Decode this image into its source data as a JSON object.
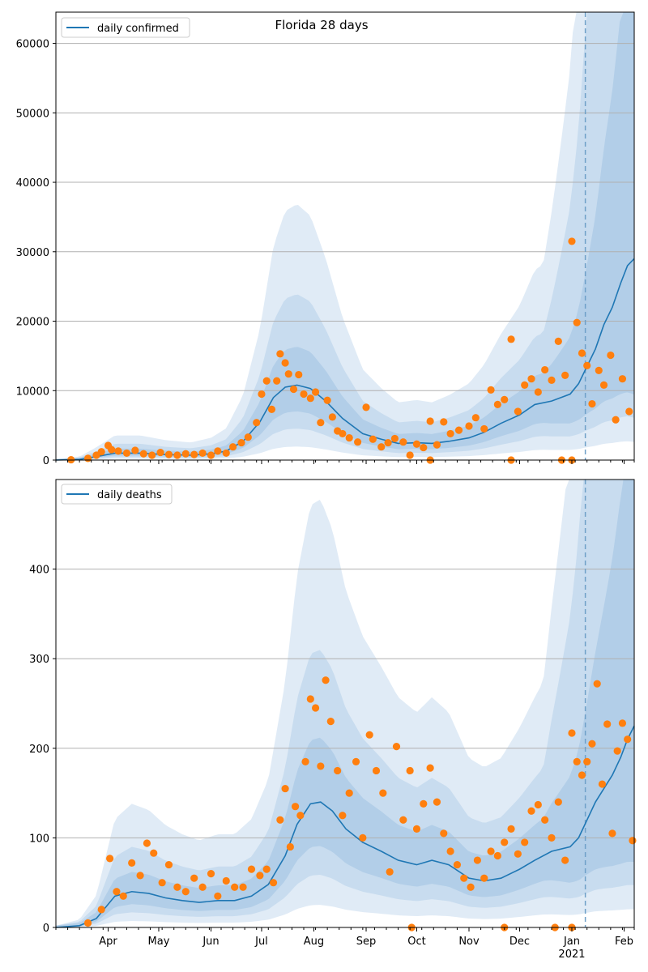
{
  "chart_data": [
    {
      "type": "line",
      "title": "Florida 28 days",
      "xlabel": "",
      "ylabel": "",
      "ylim": [
        0,
        64500
      ],
      "xlim": [
        "2020-03-01",
        "2021-02-07"
      ],
      "yticks": [
        0,
        10000,
        20000,
        30000,
        40000,
        50000,
        60000
      ],
      "grid": "horizontal",
      "legend": {
        "position": "top-left",
        "entries": [
          "daily confirmed"
        ]
      },
      "marker_line_date": "2021-01-09",
      "series": [
        {
          "name": "daily confirmed",
          "style": "line",
          "x": [
            "2020-03-01",
            "2020-03-15",
            "2020-03-25",
            "2020-04-05",
            "2020-04-20",
            "2020-05-05",
            "2020-05-20",
            "2020-06-01",
            "2020-06-10",
            "2020-06-20",
            "2020-06-30",
            "2020-07-08",
            "2020-07-15",
            "2020-07-22",
            "2020-07-30",
            "2020-08-08",
            "2020-08-18",
            "2020-08-30",
            "2020-09-10",
            "2020-09-20",
            "2020-10-01",
            "2020-10-10",
            "2020-10-20",
            "2020-11-01",
            "2020-11-10",
            "2020-11-20",
            "2020-12-01",
            "2020-12-10",
            "2020-12-20",
            "2020-12-31",
            "2021-01-05",
            "2021-01-10",
            "2021-01-15",
            "2021-01-20",
            "2021-01-25",
            "2021-01-30",
            "2021-02-03",
            "2021-02-07"
          ],
          "values": [
            0,
            100,
            500,
            1000,
            1000,
            800,
            700,
            900,
            1300,
            2700,
            5500,
            9000,
            10500,
            10800,
            10300,
            8500,
            6000,
            3800,
            3000,
            2400,
            2500,
            2400,
            2700,
            3200,
            4000,
            5300,
            6500,
            8000,
            8500,
            9500,
            11000,
            13500,
            16000,
            19500,
            22000,
            25500,
            28000,
            29000
          ]
        },
        {
          "name": "observed",
          "style": "scatter",
          "points": [
            [
              "2020-03-10",
              50
            ],
            [
              "2020-03-20",
              250
            ],
            [
              "2020-03-25",
              700
            ],
            [
              "2020-03-28",
              1200
            ],
            [
              "2020-04-01",
              2100
            ],
            [
              "2020-04-03",
              1500
            ],
            [
              "2020-04-07",
              1300
            ],
            [
              "2020-04-12",
              1000
            ],
            [
              "2020-04-17",
              1400
            ],
            [
              "2020-04-22",
              900
            ],
            [
              "2020-04-27",
              700
            ],
            [
              "2020-05-02",
              1100
            ],
            [
              "2020-05-07",
              800
            ],
            [
              "2020-05-12",
              700
            ],
            [
              "2020-05-17",
              900
            ],
            [
              "2020-05-22",
              800
            ],
            [
              "2020-05-27",
              1000
            ],
            [
              "2020-06-01",
              700
            ],
            [
              "2020-06-05",
              1300
            ],
            [
              "2020-06-10",
              1000
            ],
            [
              "2020-06-14",
              1900
            ],
            [
              "2020-06-19",
              2500
            ],
            [
              "2020-06-23",
              3300
            ],
            [
              "2020-06-28",
              5400
            ],
            [
              "2020-07-01",
              9500
            ],
            [
              "2020-07-04",
              11400
            ],
            [
              "2020-07-07",
              7300
            ],
            [
              "2020-07-10",
              11400
            ],
            [
              "2020-07-12",
              15300
            ],
            [
              "2020-07-15",
              14000
            ],
            [
              "2020-07-17",
              12400
            ],
            [
              "2020-07-20",
              10200
            ],
            [
              "2020-07-23",
              12300
            ],
            [
              "2020-07-26",
              9500
            ],
            [
              "2020-07-30",
              8900
            ],
            [
              "2020-08-02",
              9800
            ],
            [
              "2020-08-05",
              5400
            ],
            [
              "2020-08-09",
              8600
            ],
            [
              "2020-08-12",
              6200
            ],
            [
              "2020-08-15",
              4200
            ],
            [
              "2020-08-18",
              3800
            ],
            [
              "2020-08-22",
              3200
            ],
            [
              "2020-08-27",
              2600
            ],
            [
              "2020-09-01",
              7600
            ],
            [
              "2020-09-05",
              3000
            ],
            [
              "2020-09-10",
              1900
            ],
            [
              "2020-09-14",
              2500
            ],
            [
              "2020-09-18",
              3100
            ],
            [
              "2020-09-23",
              2600
            ],
            [
              "2020-09-27",
              700
            ],
            [
              "2020-10-01",
              2300
            ],
            [
              "2020-10-05",
              1800
            ],
            [
              "2020-10-09",
              5600
            ],
            [
              "2020-10-13",
              2200
            ],
            [
              "2020-10-17",
              5500
            ],
            [
              "2020-10-21",
              3800
            ],
            [
              "2020-10-26",
              4300
            ],
            [
              "2020-11-01",
              4900
            ],
            [
              "2020-11-05",
              6100
            ],
            [
              "2020-11-10",
              4500
            ],
            [
              "2020-11-14",
              10100
            ],
            [
              "2020-11-18",
              8000
            ],
            [
              "2020-11-22",
              8700
            ],
            [
              "2020-11-26",
              17400
            ],
            [
              "2020-11-30",
              7000
            ],
            [
              "2020-12-04",
              10800
            ],
            [
              "2020-12-08",
              11700
            ],
            [
              "2020-12-12",
              9800
            ],
            [
              "2020-12-16",
              13000
            ],
            [
              "2020-12-20",
              11500
            ],
            [
              "2020-12-24",
              17100
            ],
            [
              "2020-12-28",
              12200
            ],
            [
              "2021-01-01",
              31500
            ],
            [
              "2021-01-04",
              19800
            ],
            [
              "2021-01-07",
              15400
            ],
            [
              "2021-01-10",
              13600
            ],
            [
              "2021-01-13",
              8100
            ],
            [
              "2021-01-17",
              12900
            ],
            [
              "2021-01-20",
              10800
            ],
            [
              "2021-01-24",
              15100
            ],
            [
              "2021-01-27",
              5800
            ],
            [
              "2021-01-31",
              11700
            ],
            [
              "2021-02-04",
              7000
            ],
            [
              "2020-11-26",
              0
            ],
            [
              "2020-12-26",
              0
            ],
            [
              "2021-01-01",
              0
            ],
            [
              "2020-10-09",
              0
            ]
          ]
        }
      ],
      "bands": "nested uncertainty bands (light blue shades)"
    },
    {
      "type": "line",
      "title": "",
      "xlabel": "",
      "ylabel": "",
      "ylim": [
        0,
        500
      ],
      "xlim": [
        "2020-03-01",
        "2021-02-07"
      ],
      "yticks": [
        0,
        100,
        200,
        300,
        400
      ],
      "grid": "horizontal",
      "legend": {
        "position": "top-left",
        "entries": [
          "daily deaths"
        ]
      },
      "marker_line_date": "2021-01-09",
      "series": [
        {
          "name": "daily deaths",
          "style": "line",
          "x": [
            "2020-03-01",
            "2020-03-15",
            "2020-03-25",
            "2020-04-05",
            "2020-04-15",
            "2020-04-25",
            "2020-05-05",
            "2020-05-15",
            "2020-05-25",
            "2020-06-05",
            "2020-06-15",
            "2020-06-25",
            "2020-07-05",
            "2020-07-15",
            "2020-07-22",
            "2020-07-30",
            "2020-08-05",
            "2020-08-12",
            "2020-08-20",
            "2020-08-30",
            "2020-09-10",
            "2020-09-20",
            "2020-10-01",
            "2020-10-10",
            "2020-10-20",
            "2020-11-01",
            "2020-11-10",
            "2020-11-20",
            "2020-12-01",
            "2020-12-10",
            "2020-12-20",
            "2020-12-31",
            "2021-01-05",
            "2021-01-10",
            "2021-01-15",
            "2021-01-20",
            "2021-01-25",
            "2021-01-30",
            "2021-02-03",
            "2021-02-07"
          ],
          "values": [
            0,
            2,
            10,
            35,
            40,
            38,
            33,
            30,
            28,
            30,
            30,
            35,
            48,
            80,
            115,
            138,
            140,
            130,
            110,
            95,
            85,
            75,
            70,
            75,
            70,
            55,
            52,
            55,
            65,
            75,
            85,
            90,
            100,
            120,
            140,
            155,
            170,
            190,
            210,
            225
          ]
        },
        {
          "name": "observed",
          "style": "scatter",
          "points": [
            [
              "2020-03-20",
              5
            ],
            [
              "2020-03-28",
              20
            ],
            [
              "2020-04-02",
              77
            ],
            [
              "2020-04-06",
              40
            ],
            [
              "2020-04-10",
              35
            ],
            [
              "2020-04-15",
              72
            ],
            [
              "2020-04-20",
              58
            ],
            [
              "2020-04-24",
              94
            ],
            [
              "2020-04-28",
              83
            ],
            [
              "2020-05-03",
              50
            ],
            [
              "2020-05-07",
              70
            ],
            [
              "2020-05-12",
              45
            ],
            [
              "2020-05-17",
              40
            ],
            [
              "2020-05-22",
              55
            ],
            [
              "2020-05-27",
              45
            ],
            [
              "2020-06-01",
              60
            ],
            [
              "2020-06-05",
              35
            ],
            [
              "2020-06-10",
              52
            ],
            [
              "2020-06-15",
              45
            ],
            [
              "2020-06-20",
              45
            ],
            [
              "2020-06-25",
              65
            ],
            [
              "2020-06-30",
              58
            ],
            [
              "2020-07-04",
              65
            ],
            [
              "2020-07-08",
              50
            ],
            [
              "2020-07-12",
              120
            ],
            [
              "2020-07-15",
              155
            ],
            [
              "2020-07-18",
              90
            ],
            [
              "2020-07-21",
              135
            ],
            [
              "2020-07-24",
              125
            ],
            [
              "2020-07-27",
              185
            ],
            [
              "2020-07-30",
              255
            ],
            [
              "2020-08-02",
              245
            ],
            [
              "2020-08-05",
              180
            ],
            [
              "2020-08-08",
              276
            ],
            [
              "2020-08-11",
              230
            ],
            [
              "2020-08-15",
              175
            ],
            [
              "2020-08-18",
              125
            ],
            [
              "2020-08-22",
              150
            ],
            [
              "2020-08-26",
              185
            ],
            [
              "2020-08-30",
              100
            ],
            [
              "2020-09-03",
              215
            ],
            [
              "2020-09-07",
              175
            ],
            [
              "2020-09-11",
              150
            ],
            [
              "2020-09-15",
              62
            ],
            [
              "2020-09-19",
              202
            ],
            [
              "2020-09-23",
              120
            ],
            [
              "2020-09-27",
              175
            ],
            [
              "2020-10-01",
              110
            ],
            [
              "2020-10-05",
              138
            ],
            [
              "2020-10-09",
              178
            ],
            [
              "2020-10-13",
              140
            ],
            [
              "2020-10-17",
              105
            ],
            [
              "2020-10-21",
              85
            ],
            [
              "2020-10-25",
              70
            ],
            [
              "2020-10-29",
              55
            ],
            [
              "2020-11-02",
              45
            ],
            [
              "2020-11-06",
              75
            ],
            [
              "2020-11-10",
              55
            ],
            [
              "2020-11-14",
              85
            ],
            [
              "2020-11-18",
              80
            ],
            [
              "2020-11-22",
              95
            ],
            [
              "2020-11-26",
              110
            ],
            [
              "2020-11-30",
              82
            ],
            [
              "2020-12-04",
              95
            ],
            [
              "2020-12-08",
              130
            ],
            [
              "2020-12-12",
              137
            ],
            [
              "2020-12-16",
              120
            ],
            [
              "2020-12-20",
              100
            ],
            [
              "2020-12-24",
              140
            ],
            [
              "2020-12-28",
              75
            ],
            [
              "2021-01-01",
              217
            ],
            [
              "2021-01-04",
              185
            ],
            [
              "2021-01-07",
              170
            ],
            [
              "2021-01-10",
              185
            ],
            [
              "2021-01-13",
              205
            ],
            [
              "2021-01-16",
              272
            ],
            [
              "2021-01-19",
              160
            ],
            [
              "2021-01-22",
              227
            ],
            [
              "2021-01-25",
              105
            ],
            [
              "2021-01-28",
              197
            ],
            [
              "2021-01-31",
              228
            ],
            [
              "2021-02-03",
              210
            ],
            [
              "2021-02-06",
              97
            ],
            [
              "2020-09-28",
              0
            ],
            [
              "2020-12-22",
              0
            ],
            [
              "2021-01-01",
              0
            ],
            [
              "2020-11-22",
              0
            ]
          ]
        }
      ],
      "bands": "nested uncertainty bands (light blue shades)"
    }
  ],
  "x_tick_labels": [
    "Apr",
    "May",
    "Jun",
    "Jul",
    "Aug",
    "Sep",
    "Oct",
    "Nov",
    "Dec",
    "Jan",
    "Feb"
  ],
  "x_tick_year_label": "2021",
  "colors": {
    "line": "#1f77b4",
    "points": "#ff7f0e",
    "band_light": "#dbe8f4",
    "band_mid": "#c3d9ed",
    "band_dark": "#aecbe6",
    "grid": "#b0b0b0",
    "vline": "#6fa0c8"
  }
}
